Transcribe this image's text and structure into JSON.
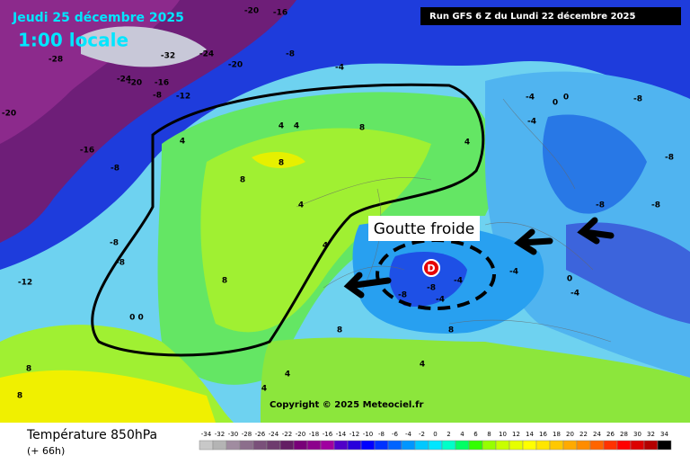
{
  "header": {
    "date": "Jeudi 25 décembre 2025",
    "time": "1:00 locale",
    "run": "Run GFS 6 Z du Lundi 22 décembre 2025"
  },
  "annotation": {
    "label": "Goutte froide",
    "low": "D"
  },
  "copyright": "Copyright © 2025 Meteociel.fr",
  "footer": {
    "title": "Température 850hPa",
    "lead": "(+ 66h)"
  },
  "map": {
    "labels": [
      "-20",
      "-16",
      "-28",
      "-32",
      "-24",
      "-20",
      "-8",
      "-4",
      "-24",
      "-20",
      "-16",
      "-8",
      "-12",
      "-20",
      "-16",
      "-8",
      "4",
      "4",
      "4",
      "8",
      "4",
      "8",
      "8",
      "4",
      "-4",
      "0",
      "0",
      "-4",
      "-8",
      "-8",
      "-8",
      "-8",
      "-8",
      "-8",
      "-12",
      "0 0",
      "8",
      "4",
      "-8",
      "-4",
      "-8",
      "-4",
      "-4",
      "0",
      "-4",
      "4",
      "4",
      "8",
      "8",
      "8",
      "8",
      "4"
    ]
  },
  "legend": {
    "values": [
      -34,
      -32,
      -30,
      -28,
      -26,
      -24,
      -22,
      -20,
      -18,
      -16,
      -14,
      -12,
      -10,
      -8,
      -6,
      -4,
      -2,
      0,
      2,
      4,
      6,
      8,
      10,
      12,
      14,
      16,
      18,
      20,
      22,
      24,
      26,
      28,
      30,
      32,
      34
    ],
    "colors": [
      "#c8c8c8",
      "#b4b4b4",
      "#a08ca0",
      "#8c6e8c",
      "#7a507a",
      "#6e3c6e",
      "#641e64",
      "#780078",
      "#8c008c",
      "#a000a0",
      "#5000c8",
      "#2800dc",
      "#0000ff",
      "#0032ff",
      "#0064ff",
      "#0096ff",
      "#00c8ff",
      "#00e6ff",
      "#00ffc8",
      "#00ff64",
      "#32ff00",
      "#96ff00",
      "#c8ff00",
      "#e6ff00",
      "#ffff00",
      "#ffe600",
      "#ffc800",
      "#ffaa00",
      "#ff8c00",
      "#ff6400",
      "#ff3200",
      "#ff0000",
      "#dc0000",
      "#b40000",
      "#000000"
    ]
  }
}
